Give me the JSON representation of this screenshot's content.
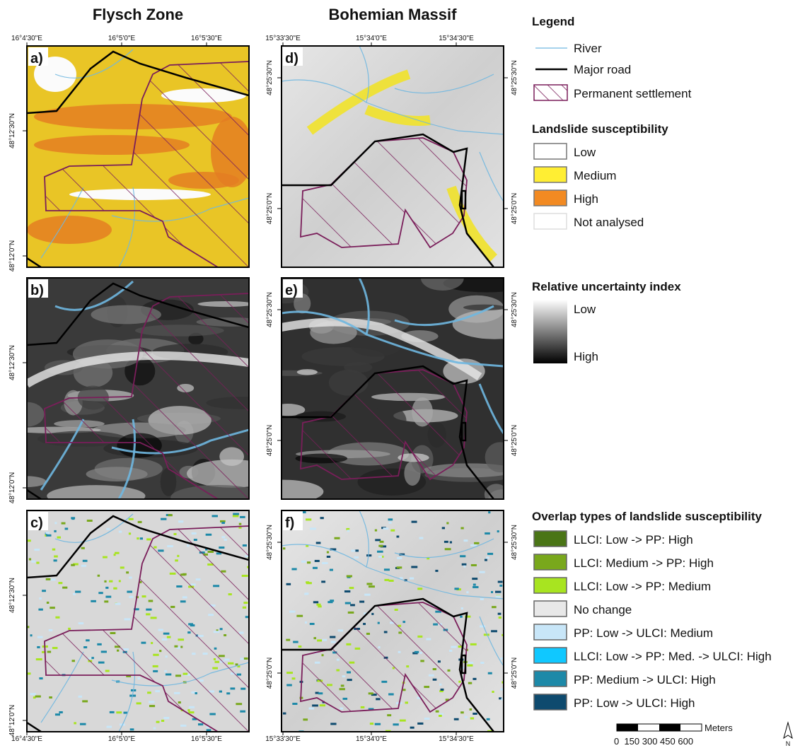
{
  "titles": [
    "Flysch Zone",
    "Bohemian Massif"
  ],
  "panels": [
    {
      "label": "a)"
    },
    {
      "label": "b)"
    },
    {
      "label": "c)"
    },
    {
      "label": "d)"
    },
    {
      "label": "e)"
    },
    {
      "label": "f)"
    }
  ],
  "coordinates": {
    "flysch_lon": [
      "16°4'30\"E",
      "16°5'0\"E",
      "16°5'30\"E"
    ],
    "flysch_lat": [
      "48°12'30\"N",
      "48°12'0\"N"
    ],
    "bohemian_lon": [
      "15°33'30\"E",
      "15°34'0\"E",
      "15°34'30\"E"
    ],
    "bohemian_lat": [
      "48°25'30\"N",
      "48°25'0\"N"
    ]
  },
  "legend": {
    "title": "Legend",
    "items": [
      "River",
      "Major road",
      "Permanent settlement"
    ],
    "susceptibility": {
      "title": "Landslide susceptibility",
      "items": [
        "Low",
        "Medium",
        "High",
        "Not analysed"
      ]
    },
    "uncertainty": {
      "title": "Relative uncertainty index",
      "low": "Low",
      "high": "High"
    },
    "overlap": {
      "title": "Overlap types of landslide susceptibility",
      "items": [
        "LLCI: Low -> PP: High",
        "LLCI: Medium -> PP: High",
        "LLCI: Low -> PP: Medium",
        "No change",
        "PP: Low -> ULCI: Medium",
        "LLCI: Low -> PP: Med. -> ULCI: High",
        "PP: Medium -> ULCI: High",
        "PP: Low -> ULCI: High"
      ]
    }
  },
  "scale_bar": {
    "unit": "Meters",
    "labels": "0  150 300 450 600"
  },
  "north": "N"
}
